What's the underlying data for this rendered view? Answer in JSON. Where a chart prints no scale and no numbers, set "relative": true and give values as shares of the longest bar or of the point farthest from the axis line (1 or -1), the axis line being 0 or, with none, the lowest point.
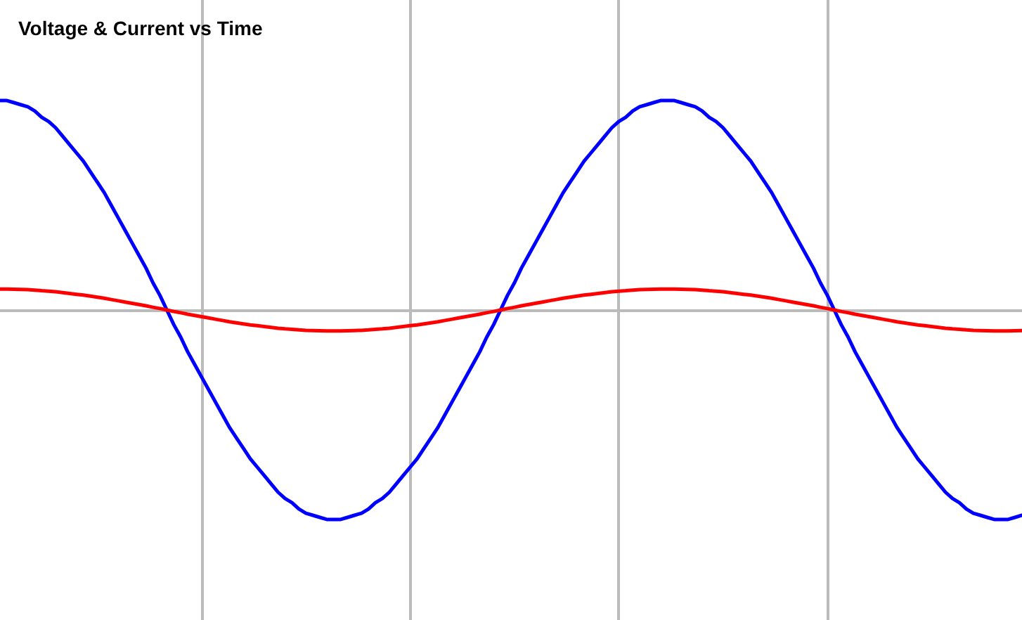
{
  "chart_data": {
    "type": "line",
    "title": "Voltage & Current vs Time",
    "relative": true,
    "grid": "x",
    "categories": [
      null,
      null,
      null,
      null,
      null,
      null,
      null,
      null,
      null,
      null,
      null,
      null,
      null,
      null,
      null,
      null,
      null,
      null,
      null,
      null,
      null,
      null,
      null,
      null,
      null,
      null,
      null,
      null,
      null,
      null,
      null,
      null,
      null,
      null,
      null,
      null,
      null,
      null,
      null,
      null,
      null,
      null,
      null,
      null,
      null,
      null,
      null,
      null,
      null,
      null,
      null,
      null,
      null,
      null,
      null,
      null,
      null,
      null,
      null,
      null,
      null,
      null,
      null,
      null,
      null,
      null,
      null,
      null,
      null,
      null,
      null,
      null,
      null,
      null,
      null,
      null,
      null,
      null,
      null,
      null,
      null,
      null,
      null,
      null,
      null,
      null,
      null,
      null,
      null,
      null,
      null,
      null,
      null,
      null,
      null,
      null,
      null,
      null,
      null,
      null,
      null,
      null,
      null,
      null,
      null,
      null,
      null,
      null,
      null,
      null,
      null,
      null,
      null,
      null,
      null,
      null,
      null,
      null,
      null,
      null,
      null,
      null,
      null,
      null,
      null,
      null,
      null,
      null,
      null,
      null,
      null,
      null,
      null,
      null,
      null,
      null,
      null,
      null,
      null,
      null,
      null,
      null,
      null,
      null,
      null,
      null,
      null,
      null
    ],
    "series": [
      {
        "color": "#0000ff",
        "values": [
          1,
          1,
          0.99,
          0.98,
          0.97,
          0.95,
          0.92,
          0.9,
          0.87,
          0.83,
          0.79,
          0.75,
          0.71,
          0.66,
          0.61,
          0.56,
          0.5,
          0.44,
          0.38,
          0.32,
          0.26,
          0.2,
          0.13,
          0.07,
          0,
          -0.07,
          -0.13,
          -0.2,
          -0.26,
          -0.32,
          -0.38,
          -0.44,
          -0.5,
          -0.56,
          -0.61,
          -0.66,
          -0.71,
          -0.75,
          -0.79,
          -0.83,
          -0.87,
          -0.9,
          -0.92,
          -0.95,
          -0.97,
          -0.98,
          -0.99,
          -1,
          -1,
          -1,
          -0.99,
          -0.98,
          -0.97,
          -0.95,
          -0.92,
          -0.9,
          -0.87,
          -0.83,
          -0.79,
          -0.75,
          -0.71,
          -0.66,
          -0.61,
          -0.56,
          -0.5,
          -0.44,
          -0.38,
          -0.32,
          -0.26,
          -0.2,
          -0.13,
          -0.07,
          0,
          0.07,
          0.13,
          0.2,
          0.26,
          0.32,
          0.38,
          0.44,
          0.5,
          0.56,
          0.61,
          0.66,
          0.71,
          0.75,
          0.79,
          0.83,
          0.87,
          0.9,
          0.92,
          0.95,
          0.97,
          0.98,
          0.99,
          1,
          1,
          1,
          0.99,
          0.98,
          0.97,
          0.95,
          0.92,
          0.9,
          0.87,
          0.83,
          0.79,
          0.75,
          0.71,
          0.66,
          0.61,
          0.56,
          0.5,
          0.44,
          0.38,
          0.32,
          0.26,
          0.2,
          0.13,
          0.07,
          0,
          -0.07,
          -0.13,
          -0.2,
          -0.26,
          -0.32,
          -0.38,
          -0.44,
          -0.5,
          -0.56,
          -0.61,
          -0.66,
          -0.71,
          -0.75,
          -0.79,
          -0.83,
          -0.87,
          -0.9,
          -0.92,
          -0.95,
          -0.97,
          -0.98,
          -0.99,
          -1,
          -1,
          -1,
          -0.99,
          -0.98
        ]
      },
      {
        "color": "#ff0000",
        "values": [
          0.1,
          0.1,
          0.099,
          0.098,
          0.097,
          0.095,
          0.092,
          0.09,
          0.087,
          0.083,
          0.079,
          0.075,
          0.071,
          0.066,
          0.061,
          0.056,
          0.05,
          0.044,
          0.038,
          0.032,
          0.026,
          0.02,
          0.013,
          0.007,
          0,
          -0.007,
          -0.013,
          -0.02,
          -0.026,
          -0.032,
          -0.038,
          -0.044,
          -0.05,
          -0.056,
          -0.061,
          -0.066,
          -0.071,
          -0.075,
          -0.079,
          -0.083,
          -0.087,
          -0.09,
          -0.092,
          -0.095,
          -0.097,
          -0.098,
          -0.099,
          -0.1,
          -0.1,
          -0.1,
          -0.099,
          -0.098,
          -0.097,
          -0.095,
          -0.092,
          -0.09,
          -0.087,
          -0.083,
          -0.079,
          -0.075,
          -0.071,
          -0.066,
          -0.061,
          -0.056,
          -0.05,
          -0.044,
          -0.038,
          -0.032,
          -0.026,
          -0.02,
          -0.013,
          -0.007,
          0,
          0.007,
          0.013,
          0.02,
          0.026,
          0.032,
          0.038,
          0.044,
          0.05,
          0.056,
          0.061,
          0.066,
          0.071,
          0.075,
          0.079,
          0.083,
          0.087,
          0.09,
          0.092,
          0.095,
          0.097,
          0.098,
          0.099,
          0.1,
          0.1,
          0.1,
          0.099,
          0.098,
          0.097,
          0.095,
          0.092,
          0.09,
          0.087,
          0.083,
          0.079,
          0.075,
          0.071,
          0.066,
          0.061,
          0.056,
          0.05,
          0.044,
          0.038,
          0.032,
          0.026,
          0.02,
          0.013,
          0.007,
          0,
          -0.007,
          -0.013,
          -0.02,
          -0.026,
          -0.032,
          -0.038,
          -0.044,
          -0.05,
          -0.056,
          -0.061,
          -0.066,
          -0.071,
          -0.075,
          -0.079,
          -0.083,
          -0.087,
          -0.09,
          -0.092,
          -0.095,
          -0.097,
          -0.098,
          -0.099,
          -0.1,
          -0.1,
          -0.1,
          -0.099,
          -0.098
        ]
      }
    ]
  }
}
